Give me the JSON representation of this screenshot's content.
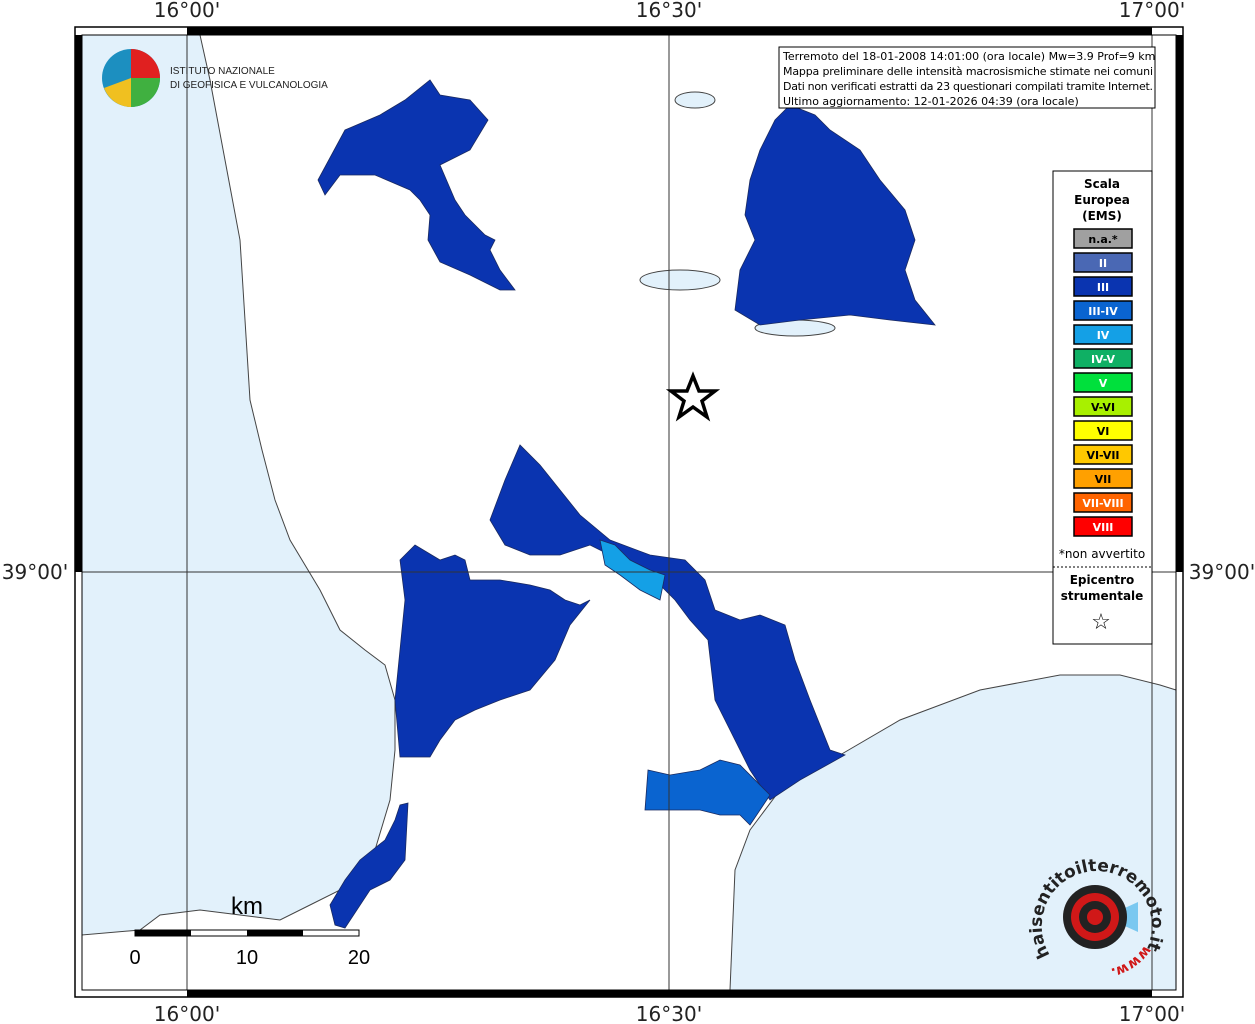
{
  "logo": {
    "line1": "ISTITUTO NAZIONALE",
    "line2": "DI GEOFISICA E VULCANOLOGIA"
  },
  "info": [
    "Terremoto del 18-01-2008 14:01:00 (ora locale) Mw=3.9 Prof=9 km",
    "Mappa preliminare delle intensità macrosismiche stimate nei comuni",
    "Dati non verificati estratti da 23 questionari compilati tramite Internet.",
    "Ultimo aggiornamento: 12-01-2026 04:39 (ora locale)"
  ],
  "axes": {
    "top": [
      "16°00'",
      "16°30'",
      "17°00'"
    ],
    "bottom": [
      "16°00'",
      "16°30'",
      "17°00'"
    ],
    "left": "39°00'",
    "right": "39°00'"
  },
  "legend": {
    "title": [
      "Scala",
      "Europea",
      "(EMS)"
    ],
    "items": [
      {
        "label": "n.a.*",
        "color": "#a0a0a0"
      },
      {
        "label": "II",
        "color": "#4a68b4"
      },
      {
        "label": "III",
        "color": "#0a34b0"
      },
      {
        "label": "III-IV",
        "color": "#0a64d0"
      },
      {
        "label": "IV",
        "color": "#14a0e6"
      },
      {
        "label": "IV-V",
        "color": "#0fb064"
      },
      {
        "label": "V",
        "color": "#00e03c"
      },
      {
        "label": "V-VI",
        "color": "#a8f000"
      },
      {
        "label": "VI",
        "color": "#ffff00"
      },
      {
        "label": "VI-VII",
        "color": "#ffc800"
      },
      {
        "label": "VII",
        "color": "#ffa000"
      },
      {
        "label": "VII-VIII",
        "color": "#ff6400"
      },
      {
        "label": "VIII",
        "color": "#ff0000"
      }
    ],
    "note": "*non avvertito",
    "epicenter": [
      "Epicentro",
      "strumentale"
    ],
    "epicenter_symbol": "☆"
  },
  "scale_bar": {
    "unit": "km",
    "labels": [
      "0",
      "10",
      "20"
    ]
  },
  "watermark": {
    "prefix": "www.",
    "site": "haisentitoilterremoto.it"
  }
}
